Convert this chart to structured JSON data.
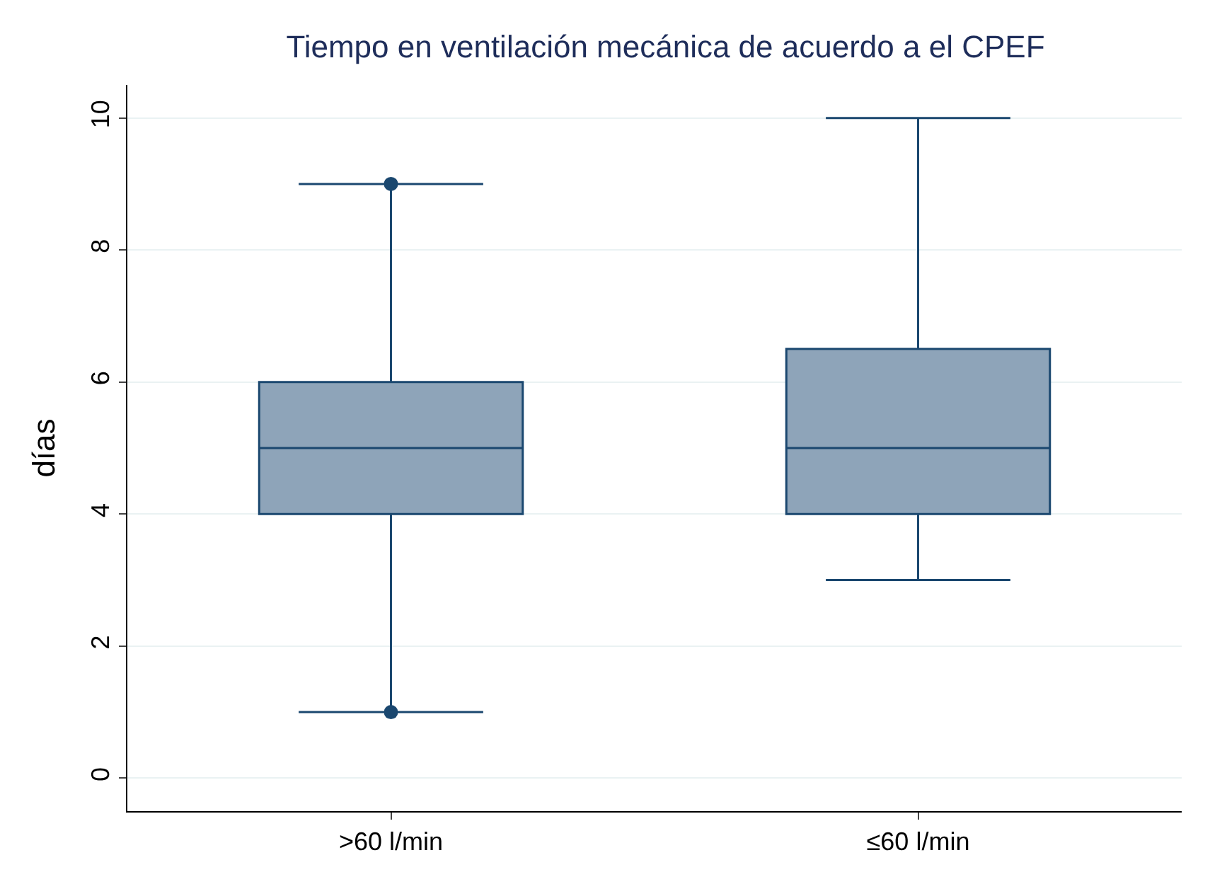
{
  "chart_data": {
    "type": "box",
    "title": "Tiempo en ventilación mecánica de acuerdo a el CPEF",
    "ylabel": "días",
    "categories": [
      ">60 l/min",
      "≤60 l/min"
    ],
    "boxes": [
      {
        "low": 1,
        "q1": 4,
        "median": 5,
        "q3": 6,
        "high": 9,
        "outliers": [
          1,
          9
        ]
      },
      {
        "low": 3,
        "q1": 4,
        "median": 5,
        "q3": 6.5,
        "high": 10
      }
    ],
    "color": "#8ea4b9",
    "ylim": [
      -0.5,
      10.5
    ],
    "yticks": [
      0,
      2,
      4,
      6,
      8,
      10
    ],
    "grid": "y"
  }
}
